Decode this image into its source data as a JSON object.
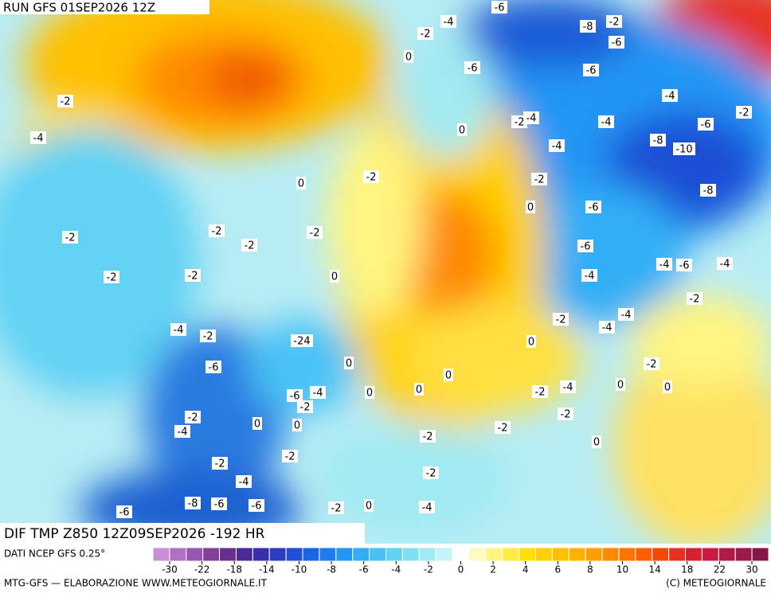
{
  "header": {
    "run": "RUN GFS 01SEP2026 12Z"
  },
  "map": {
    "field": "DIF TMP Z850 12Z09SEP2026 -192 HR",
    "labels": [
      "-4",
      "-6",
      "-8",
      "-2",
      "-6",
      "-2",
      "0",
      "-6",
      "-6",
      "-2",
      "-4",
      "-2",
      "-4",
      "0",
      "-2",
      "-4",
      "-4",
      "-6",
      "-8",
      "-10",
      "-4",
      "-2",
      "-2",
      "0",
      "-8",
      "0",
      "-6",
      "-2",
      "-2",
      "-2",
      "-2",
      "-6",
      "-2",
      "-2",
      "0",
      "-4",
      "-4",
      "-6",
      "-4",
      "-2",
      "-4",
      "-4",
      "-2",
      "-2",
      "-4",
      "-24",
      "0",
      "-6",
      "-2",
      "0",
      "-6",
      "-4",
      "0",
      "0",
      "0",
      "-2",
      "-4",
      "0",
      "0",
      "-2",
      "-2",
      "0",
      "0",
      "-2",
      "-4",
      "-2",
      "-2",
      "0",
      "-2",
      "-2",
      "-2",
      "-4",
      "-6",
      "-8",
      "-6",
      "-6",
      "-2",
      "0",
      "-4"
    ]
  },
  "legend": {
    "source": "DATI NCEP GFS 0.25°",
    "colors": [
      "#c88fd6",
      "#b070c4",
      "#9a55b0",
      "#82409c",
      "#6a2f8c",
      "#4c2a96",
      "#3a2fa8",
      "#2a3cc0",
      "#1e4fd6",
      "#1a64e6",
      "#1c7cf0",
      "#2296f4",
      "#30aef6",
      "#48c2f6",
      "#62d2f4",
      "#80dff2",
      "#a0eaf2",
      "#c4f4f6",
      "#ffffff",
      "#fffac0",
      "#fff480",
      "#ffec40",
      "#ffe000",
      "#ffd000",
      "#ffc000",
      "#ffb000",
      "#ff9e00",
      "#ff8a00",
      "#ff7400",
      "#ff5e00",
      "#f44800",
      "#e83020",
      "#d82030",
      "#c81a40",
      "#b01a48",
      "#9a1a4a",
      "#861848"
    ],
    "ticks": [
      -30,
      -22,
      -18,
      -14,
      -10,
      -8,
      -6,
      -4,
      -2,
      0,
      2,
      4,
      6,
      8,
      10,
      14,
      18,
      22,
      30
    ]
  },
  "footer": {
    "left": "MTG-GFS — ELABORAZIONE WWW.METEOGIORNALE.IT",
    "right": "(C) METEOGIORNALE"
  }
}
